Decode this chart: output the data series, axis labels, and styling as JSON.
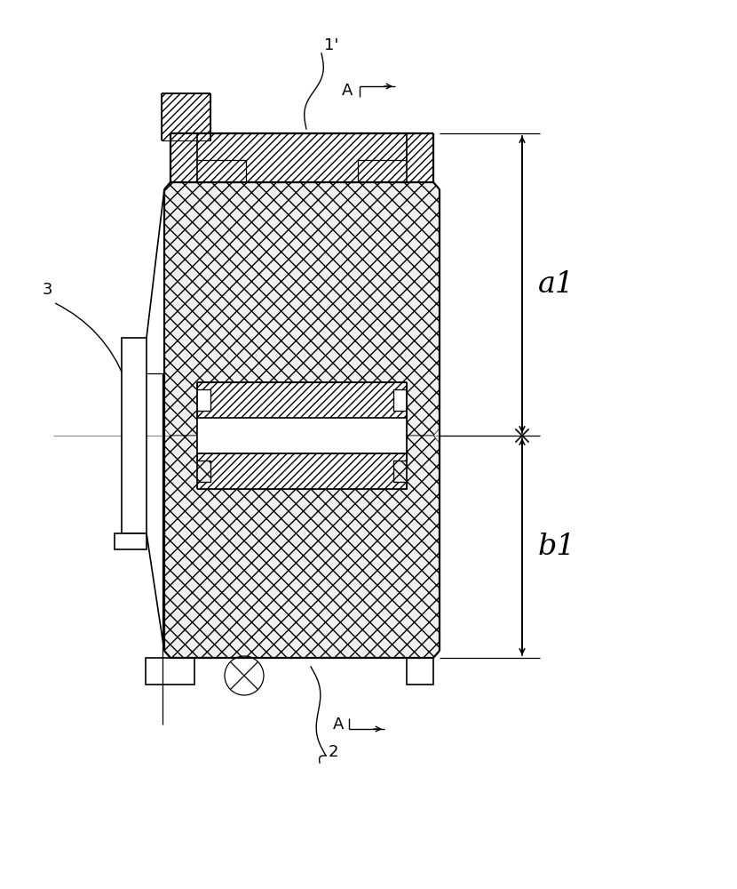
{
  "bg_color": "#ffffff",
  "line_color": "#000000",
  "label_1prime": "1’",
  "label_2": "2",
  "label_3": "3",
  "label_A_top": "A",
  "label_A_bot": "A",
  "label_a1": "a1",
  "label_b1": "b1",
  "figsize": [
    8.3,
    10.0
  ],
  "dpi": 100
}
